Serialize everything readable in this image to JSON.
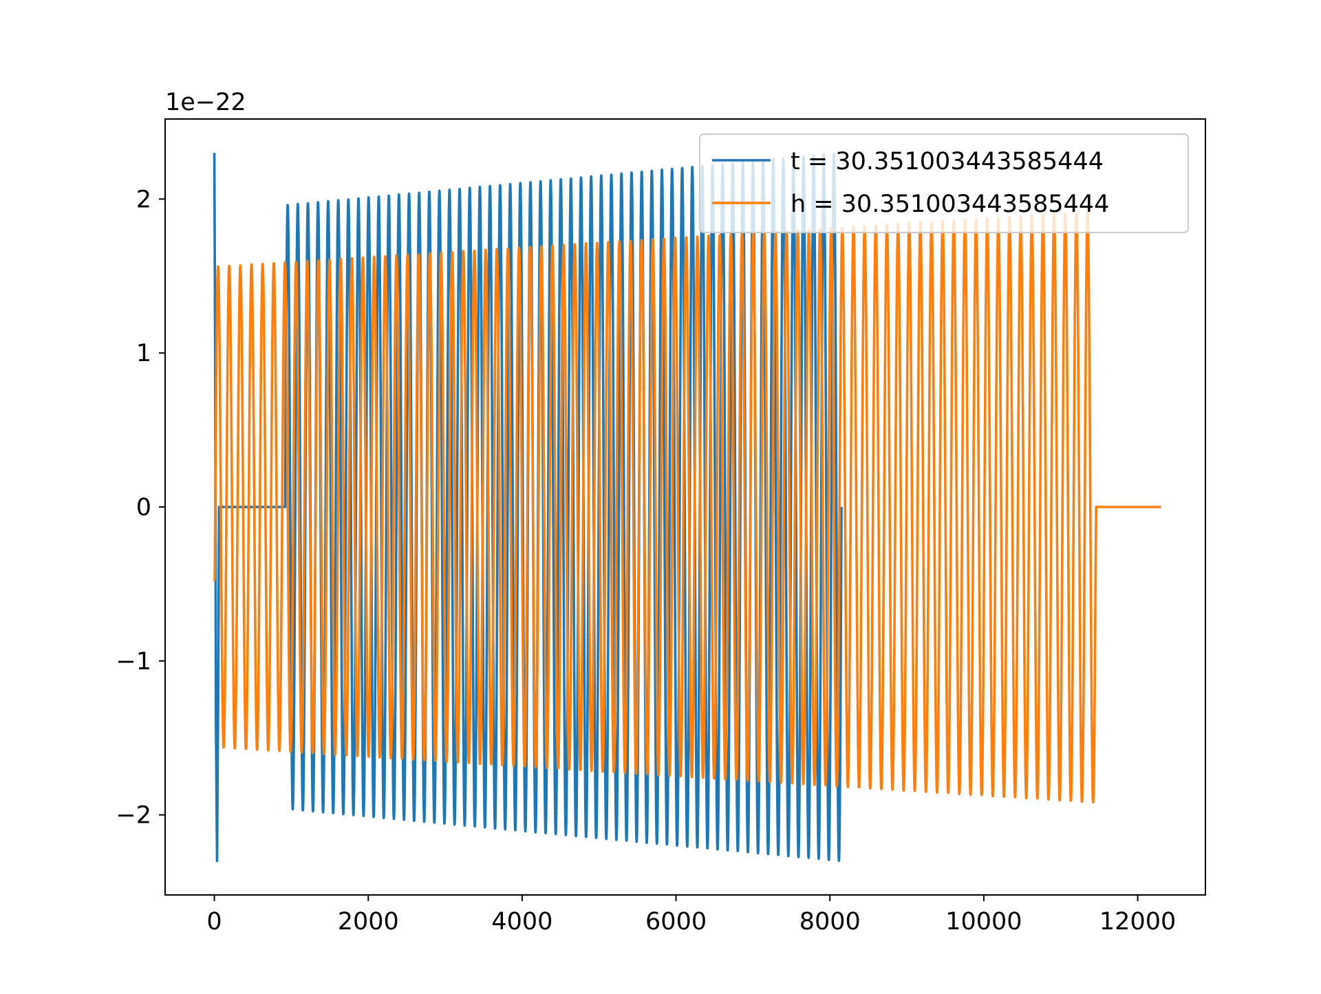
{
  "chart_data": {
    "type": "line",
    "title": "",
    "xlabel": "",
    "ylabel": "",
    "y_offset_label": "1e−22",
    "y_scale_factor": 1e-22,
    "xlim": [
      -640,
      12880
    ],
    "ylim": [
      -2.52,
      2.52
    ],
    "xticks": [
      0,
      2000,
      4000,
      6000,
      8000,
      10000,
      12000
    ],
    "xtick_labels": [
      "0",
      "2000",
      "4000",
      "6000",
      "8000",
      "10000",
      "12000"
    ],
    "yticks": [
      -2,
      -1,
      0,
      1,
      2
    ],
    "ytick_labels": [
      "−2",
      "−1",
      "0",
      "1",
      "2"
    ],
    "grid": false,
    "legend_position": "upper right",
    "series": [
      {
        "name": "t = 30.351003443585444",
        "color": "#1f77b4",
        "data_x": [
          0,
          20,
          40,
          60,
          70,
          900,
          920,
          950,
          1000,
          1050,
          8100,
          8140,
          8150
        ],
        "description": "impulse-like start then oscillation from x=920 to x=8150, amplitude growing from ~1.96 to ~2.30",
        "oscillation": {
          "x_start": 920,
          "x_end": 8150,
          "cycles": 55,
          "amp_start": 1.96,
          "amp_end": 2.3,
          "flat_before": [
            60,
            920
          ],
          "initial_spike_peak": 2.3,
          "initial_spike_trough": -2.3
        }
      },
      {
        "name": "h = 30.351003443585444",
        "color": "#ff7f0e",
        "oscillation": {
          "x_start": 0,
          "x_end": 11450,
          "cycles": 79,
          "amp_start": 1.56,
          "amp_end": 1.92,
          "flat_after": [
            11450,
            12300
          ],
          "start_value": -0.48
        }
      }
    ]
  }
}
